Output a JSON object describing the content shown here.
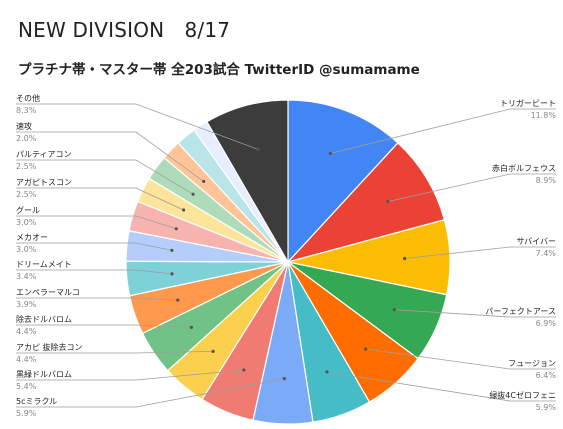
{
  "header": {
    "title": "NEW DIVISION　8/17",
    "subtitle": "プラチナ帯・マスター帯 全203試合 TwitterID @sumamame"
  },
  "chart_data": {
    "type": "pie",
    "start_angle_deg": 0,
    "direction": "clockwise",
    "slices": [
      {
        "label": "トリガービート",
        "value": 11.8,
        "display": "11.8%",
        "color": "#4285F4"
      },
      {
        "label": "赤白ボルフェウス",
        "value": 8.9,
        "display": "8.9%",
        "color": "#EA4335"
      },
      {
        "label": "サバイバー",
        "value": 7.4,
        "display": "7.4%",
        "color": "#FBBC04"
      },
      {
        "label": "パーフェクトアース",
        "value": 6.9,
        "display": "6.9%",
        "color": "#34A853"
      },
      {
        "label": "フュージョン",
        "value": 6.4,
        "display": "6.4%",
        "color": "#FF6D01"
      },
      {
        "label": "緑抜4Cゼロフェニ",
        "value": 5.9,
        "display": "5.9%",
        "color": "#46BDC6"
      },
      {
        "label": "5cミラクル",
        "value": 5.9,
        "display": "5.9%",
        "color": "#7BAAF7"
      },
      {
        "label": "黒緑ドルバロム",
        "value": 5.4,
        "display": "5.4%",
        "color": "#F07B72"
      },
      {
        "label": "アカピ 抜除去コン",
        "value": 4.4,
        "display": "4.4%",
        "color": "#FCD04F"
      },
      {
        "label": "除去ドルバロム",
        "value": 4.4,
        "display": "4.4%",
        "color": "#71C287"
      },
      {
        "label": "エンペラーマルコ",
        "value": 3.9,
        "display": "3.9%",
        "color": "#FF994D"
      },
      {
        "label": "ドリームメイト",
        "value": 3.4,
        "display": "3.4%",
        "color": "#7ED1D7"
      },
      {
        "label": "メカオー",
        "value": 3.0,
        "display": "3.0%",
        "color": "#B3CEFB"
      },
      {
        "label": "グール",
        "value": 3.0,
        "display": "3.0%",
        "color": "#F7B4AE"
      },
      {
        "label": "アガピトスコン",
        "value": 2.5,
        "display": "2.5%",
        "color": "#FDE49B"
      },
      {
        "label": "パルティアコン",
        "value": 2.5,
        "display": "2.5%",
        "color": "#AEDCBA"
      },
      {
        "label": "速攻",
        "value": 2.0,
        "display": "2.0%",
        "color": "#FFC599"
      },
      {
        "label": "",
        "value": 2.0,
        "display": "",
        "color": "#B9E5E8"
      },
      {
        "label": "",
        "value": 1.5,
        "display": "",
        "color": "#E6EEFF"
      },
      {
        "label": "その他",
        "value": 8.3,
        "display": "8.3%",
        "color": "#3C3C3C"
      }
    ]
  }
}
